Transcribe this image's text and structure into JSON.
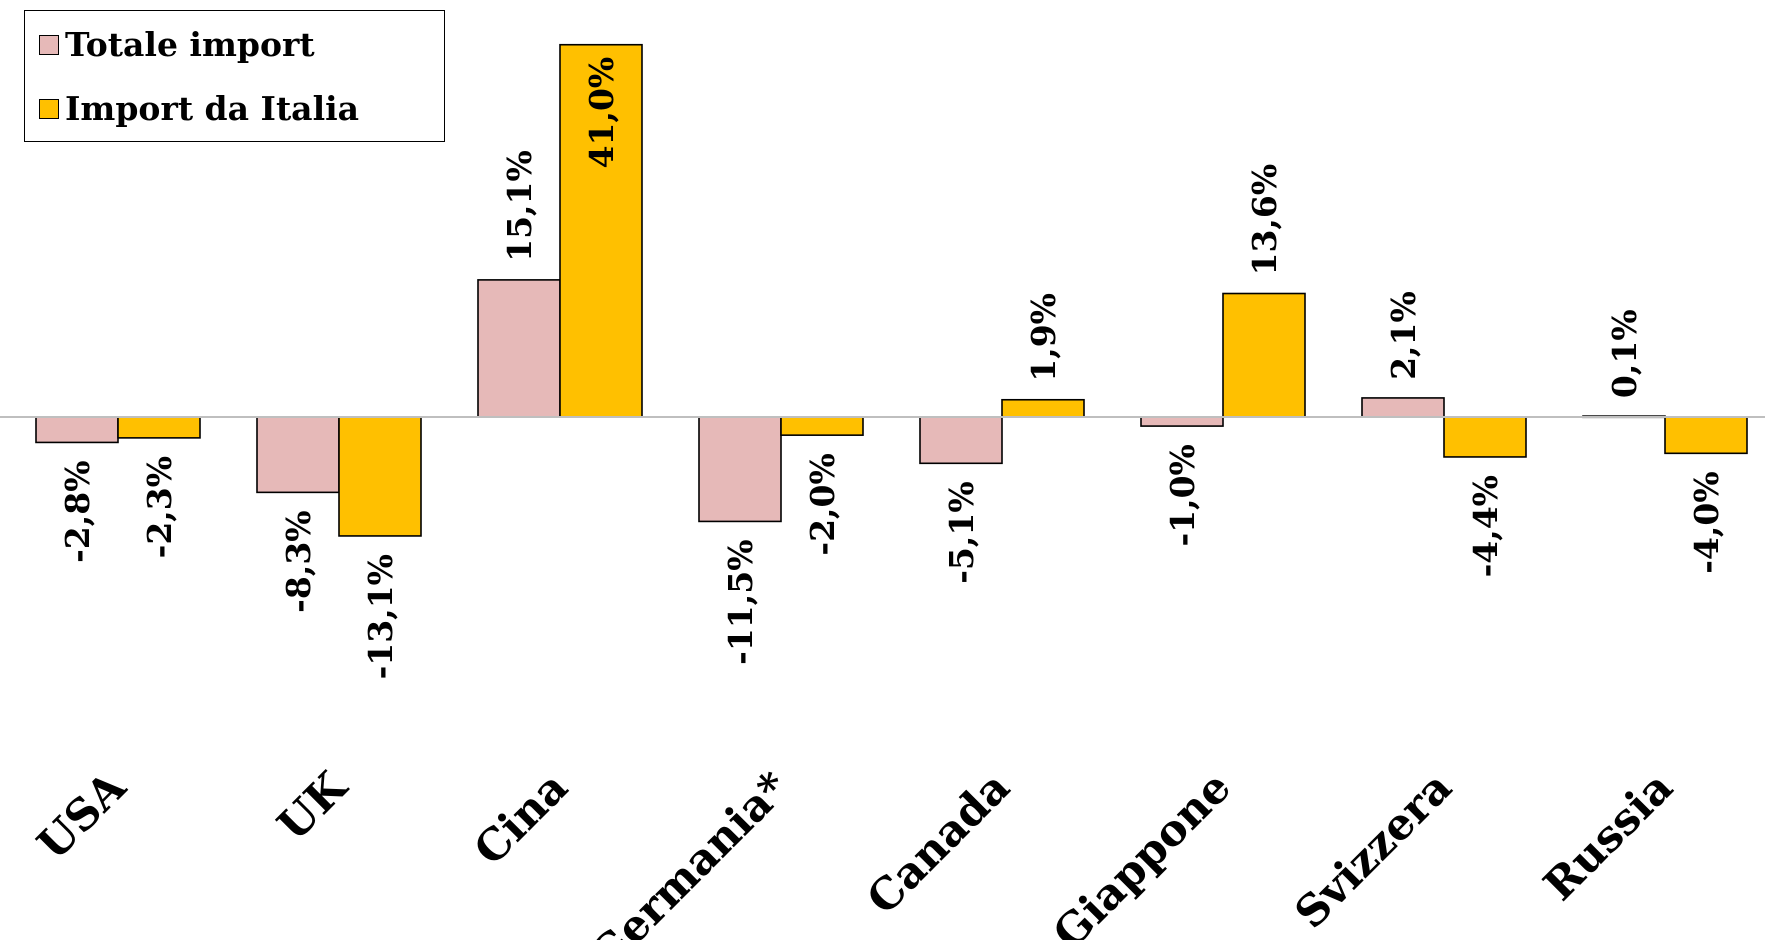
{
  "chart_data": {
    "type": "bar",
    "categories": [
      "USA",
      "UK",
      "Cina",
      "Germania*",
      "Canada",
      "Giappone",
      "Svizzera",
      "Russia"
    ],
    "series": [
      {
        "name": "Totale import",
        "color": "#E6B9B8",
        "values": [
          -2.8,
          -8.3,
          15.1,
          -11.5,
          -5.1,
          -1.0,
          2.1,
          0.1
        ],
        "labels": [
          "-2,8%",
          "-8,3%",
          "15,1%",
          "-11,5%",
          "-5,1%",
          "-1,0%",
          "2,1%",
          "0,1%"
        ]
      },
      {
        "name": "Import da Italia",
        "color": "#FFC000",
        "values": [
          -2.3,
          -13.1,
          41.0,
          -2.0,
          1.9,
          13.6,
          -4.4,
          -4.0
        ],
        "labels": [
          "-2,3%",
          "-13,1%",
          "41,0%",
          "-2,0%",
          "1,9%",
          "13,6%",
          "-4,4%",
          "-4,0%"
        ]
      }
    ],
    "ylim": [
      -13.1,
      41.0
    ],
    "grid": false,
    "legend_position": "top-left"
  }
}
